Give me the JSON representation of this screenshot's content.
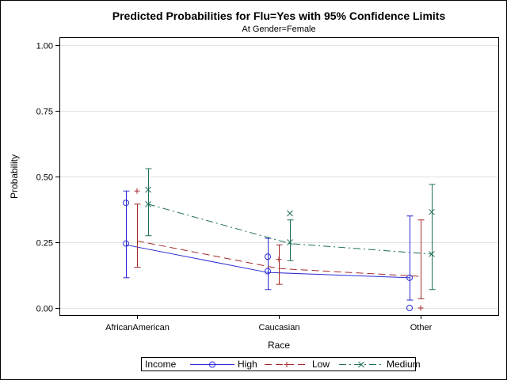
{
  "chart_data": {
    "type": "line",
    "title": "Predicted Probabilities for Flu=Yes with 95% Confidence Limits",
    "subtitle": "At Gender=Female",
    "xlabel": "Race",
    "ylabel": "Probability",
    "categories": [
      "AfricanAmerican",
      "Caucasian",
      "Other"
    ],
    "ylim": [
      0,
      1
    ],
    "yticks": [
      "0.00",
      "0.25",
      "0.50",
      "0.75",
      "1.00"
    ],
    "grid": true,
    "legend_title": "Income",
    "legend_position": "bottom",
    "series": [
      {
        "name": "High",
        "color": "#2a2ad4",
        "marker": "circle",
        "dash": "solid",
        "fitted": [
          0.24,
          0.135,
          0.115
        ],
        "lower": [
          0.115,
          0.07,
          0.03
        ],
        "upper": [
          0.445,
          0.265,
          0.35
        ],
        "observed": [
          [
            0.245,
            0.4
          ],
          [
            0.14,
            0.195
          ],
          [
            0.115,
            0.0
          ]
        ]
      },
      {
        "name": "Low",
        "color": "#a52a2a",
        "marker": "plus",
        "dash": "dashed",
        "fitted": [
          0.255,
          0.15,
          0.12
        ],
        "lower": [
          0.155,
          0.09,
          0.035
        ],
        "upper": [
          0.395,
          0.24,
          0.335
        ],
        "observed": [
          [
            0.445
          ],
          [
            0.185
          ],
          [
            0.0
          ]
        ]
      },
      {
        "name": "Medium",
        "color": "#1f6e5a",
        "marker": "x",
        "dash": "dashdot",
        "fitted": [
          0.395,
          0.245,
          0.205
        ],
        "lower": [
          0.275,
          0.18,
          0.07
        ],
        "upper": [
          0.53,
          0.335,
          0.47
        ],
        "observed": [
          [
            0.45,
            0.395
          ],
          [
            0.36,
            0.25
          ],
          [
            0.365,
            0.205
          ]
        ]
      }
    ]
  }
}
